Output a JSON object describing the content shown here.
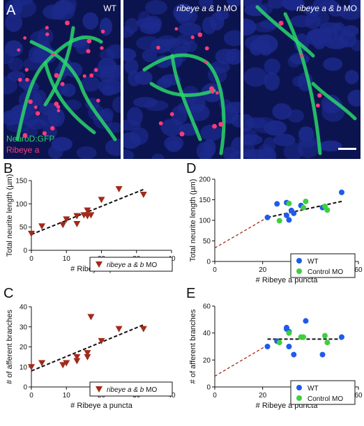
{
  "micrographs": [
    {
      "letter": "A",
      "label_italic": "",
      "label_plain": "WT",
      "legend": [
        "NeuroD:GFP",
        "Ribeye a"
      ]
    },
    {
      "letter": "",
      "label_italic": "ribeye a & b",
      "label_plain": " MO",
      "legend": []
    },
    {
      "letter": "",
      "label_italic": "ribeye a & b",
      "label_plain": " MO",
      "legend": [],
      "scale_bar": true
    }
  ],
  "colors": {
    "dapi": "#1c2a8c",
    "gfp": "#29d66a",
    "ribeye": "#ff3a7a",
    "mo_marker": "#a22a1a",
    "wt": "#1f5bea",
    "control": "#3ecf3e",
    "fit": "#111111",
    "fit_red": "#a22a1a"
  },
  "chart_data": [
    {
      "panel": "B",
      "type": "scatter",
      "xlabel": "# Ribeye a puncta",
      "ylabel": "Total neurite length (µm)",
      "xlim": [
        0,
        40
      ],
      "ylim": [
        0,
        150
      ],
      "xticks": [
        "0",
        "10",
        "20",
        "30",
        "40"
      ],
      "yticks": [
        "0",
        "50",
        "100",
        "150"
      ],
      "series": [
        {
          "name": "ribeye a & b MO",
          "marker": "triangle-down",
          "x": [
            0,
            3,
            9,
            10,
            13,
            13,
            15,
            16,
            16,
            17,
            20,
            25,
            32
          ],
          "y": [
            36,
            52,
            55,
            67,
            57,
            74,
            76,
            74,
            86,
            76,
            109,
            132,
            120
          ]
        }
      ],
      "fit_lines": [
        {
          "x": [
            0,
            32
          ],
          "y": [
            34,
            131
          ],
          "style": "dashed"
        }
      ],
      "legend": "bottom-right"
    },
    {
      "panel": "C",
      "type": "scatter",
      "xlabel": "# Ribeye a puncta",
      "ylabel": "# of afferent branches",
      "xlim": [
        0,
        40
      ],
      "ylim": [
        0,
        40
      ],
      "xticks": [
        "0",
        "10",
        "20",
        "30",
        "40"
      ],
      "yticks": [
        "0",
        "10",
        "20",
        "30",
        "40"
      ],
      "series": [
        {
          "name": "ribeye a & b MO",
          "marker": "triangle-down",
          "x": [
            0,
            3,
            9,
            10,
            13,
            13,
            16,
            16,
            17,
            20,
            25,
            32
          ],
          "y": [
            10,
            12,
            11,
            12,
            13,
            15,
            15,
            17,
            35,
            23,
            29,
            29
          ]
        }
      ],
      "fit_lines": [
        {
          "x": [
            0,
            32
          ],
          "y": [
            8,
            31
          ],
          "style": "dashed"
        }
      ],
      "legend": "bottom-right"
    },
    {
      "panel": "D",
      "type": "scatter",
      "xlabel": "# Ribeye a puncta",
      "ylabel": "Total neurite length (µm)",
      "xlim": [
        0,
        60
      ],
      "ylim": [
        0,
        200
      ],
      "xticks": [
        "0",
        "20",
        "40",
        "60"
      ],
      "yticks": [
        "0",
        "50",
        "100",
        "150",
        "200"
      ],
      "series": [
        {
          "name": "WT",
          "marker": "circle",
          "x": [
            22,
            26,
            30,
            30,
            31,
            32,
            33,
            36,
            45,
            53
          ],
          "y": [
            107,
            140,
            143,
            112,
            101,
            124,
            117,
            136,
            131,
            168
          ]
        },
        {
          "name": "Control MO",
          "marker": "circle",
          "x": [
            27,
            31,
            37,
            38,
            46,
            47
          ],
          "y": [
            99,
            141,
            131,
            146,
            134,
            125
          ]
        }
      ],
      "fit_lines": [
        {
          "x": [
            22,
            53
          ],
          "y": [
            107,
            146
          ],
          "style": "dashed"
        },
        {
          "x": [
            0,
            22
          ],
          "y": [
            33,
            107
          ],
          "style": "dashed-red"
        }
      ],
      "legend": "bottom-right"
    },
    {
      "panel": "E",
      "type": "scatter",
      "xlabel": "# Ribeye a puncta",
      "ylabel": "# of afferent branches",
      "xlim": [
        0,
        60
      ],
      "ylim": [
        0,
        60
      ],
      "xticks": [
        "0",
        "20",
        "40",
        "60"
      ],
      "yticks": [
        "0",
        "20",
        "40",
        "60"
      ],
      "series": [
        {
          "name": "WT",
          "marker": "circle",
          "x": [
            22,
            26,
            30,
            30,
            31,
            31,
            33,
            38,
            45,
            53
          ],
          "y": [
            30,
            34,
            43,
            44,
            41,
            30,
            24,
            49,
            24,
            37
          ]
        },
        {
          "name": "Control MO",
          "marker": "circle",
          "x": [
            27,
            31,
            36,
            37,
            46,
            47
          ],
          "y": [
            33,
            40,
            37,
            37,
            38,
            33
          ]
        }
      ],
      "fit_lines": [
        {
          "x": [
            22,
            53
          ],
          "y": [
            35.5,
            35.5
          ],
          "style": "dashed"
        },
        {
          "x": [
            0,
            22
          ],
          "y": [
            8,
            31
          ],
          "style": "dashed-red"
        }
      ],
      "legend": "bottom-right"
    }
  ]
}
